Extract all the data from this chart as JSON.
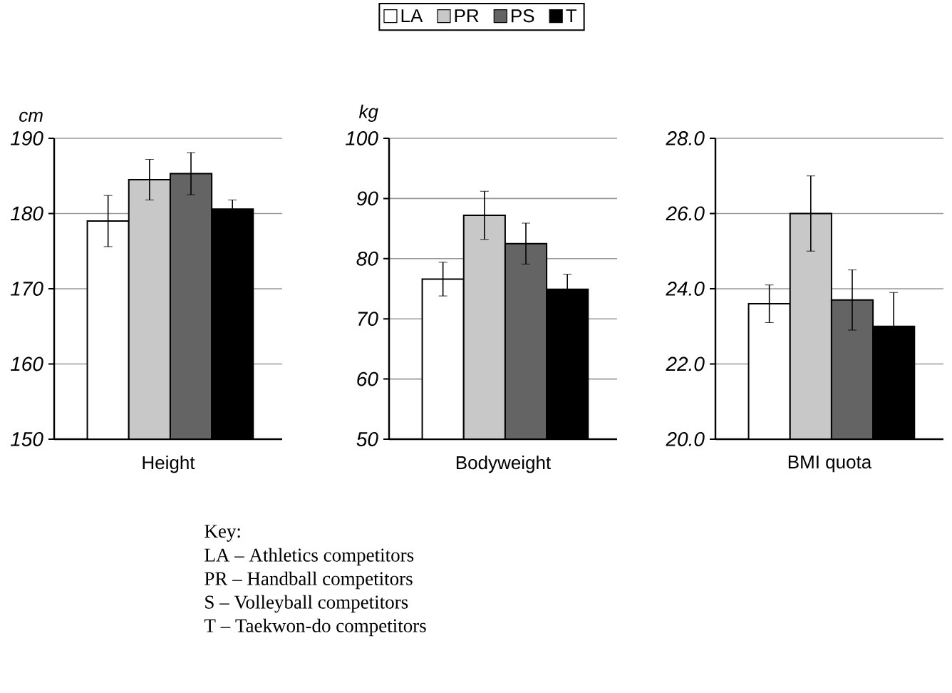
{
  "chart_data": [
    {
      "type": "bar",
      "categories": [
        null,
        null,
        null,
        null
      ],
      "xlabel": "Height",
      "ylabel": "cm",
      "ylim": [
        150,
        190
      ],
      "yticks": [
        150,
        160,
        170,
        180,
        190
      ],
      "grid": "y",
      "legend": "top",
      "series": [
        {
          "name": "LA",
          "color": "#ffffff",
          "values": [
            179.0,
            null,
            null,
            null
          ],
          "errors": [
            3.4,
            null,
            null,
            null
          ]
        },
        {
          "name": "PR",
          "color": "#c8c8c8",
          "values": [
            null,
            184.5,
            null,
            null
          ],
          "errors": [
            null,
            2.7,
            null,
            null
          ]
        },
        {
          "name": "PS",
          "color": "#646464",
          "values": [
            null,
            null,
            185.3,
            null
          ],
          "errors": [
            null,
            null,
            2.8,
            null
          ]
        },
        {
          "name": "T",
          "color": "#000000",
          "values": [
            null,
            null,
            null,
            180.6
          ],
          "errors": [
            null,
            null,
            null,
            1.2
          ]
        }
      ],
      "annotations": [
        "Key:",
        "LA – Athletics competitors",
        "PR – Handball competitors",
        "S – Volleyball competitors",
        "T – Taekwon-do competitors"
      ]
    },
    {
      "type": "bar",
      "categories": [
        null,
        null,
        null,
        null
      ],
      "xlabel": "Bodyweight",
      "ylabel": "kg",
      "ylim": [
        50,
        100
      ],
      "yticks": [
        50,
        60,
        70,
        80,
        90,
        100
      ],
      "grid": "y",
      "series": [
        {
          "color": "#ffffff",
          "values": [
            76.6,
            null,
            null,
            null
          ],
          "errors": [
            2.8,
            null,
            null,
            null
          ]
        },
        {
          "color": "#c8c8c8",
          "values": [
            null,
            87.2,
            null,
            null
          ],
          "errors": [
            null,
            4.0,
            null,
            null
          ]
        },
        {
          "color": "#646464",
          "values": [
            null,
            null,
            82.5,
            null
          ],
          "errors": [
            null,
            null,
            3.4,
            null
          ]
        },
        {
          "color": "#000000",
          "values": [
            null,
            null,
            null,
            74.9
          ],
          "errors": [
            null,
            null,
            null,
            2.5
          ]
        }
      ]
    },
    {
      "type": "bar",
      "categories": [
        null,
        null,
        null,
        null
      ],
      "xlabel": "BMI quota",
      "ylim": [
        20,
        28
      ],
      "yticks": [
        {
          "value": 20,
          "label": "20.0"
        },
        {
          "value": 22,
          "label": "22.0"
        },
        {
          "value": 24,
          "label": "24.0"
        },
        {
          "value": 26,
          "label": "26.0"
        },
        {
          "value": 28,
          "label": "28.0"
        }
      ],
      "grid": "y",
      "series": [
        {
          "color": "#ffffff",
          "values": [
            23.6,
            null,
            null,
            null
          ],
          "errors": [
            0.5,
            null,
            null,
            null
          ]
        },
        {
          "color": "#c8c8c8",
          "values": [
            null,
            26.0,
            null,
            null
          ],
          "errors": [
            null,
            1.0,
            null,
            null
          ]
        },
        {
          "color": "#646464",
          "values": [
            null,
            null,
            23.7,
            null
          ],
          "errors": [
            null,
            null,
            0.8,
            null
          ]
        },
        {
          "color": "#000000",
          "values": [
            null,
            null,
            null,
            23.0
          ],
          "errors": [
            null,
            null,
            null,
            0.9
          ]
        }
      ]
    }
  ]
}
